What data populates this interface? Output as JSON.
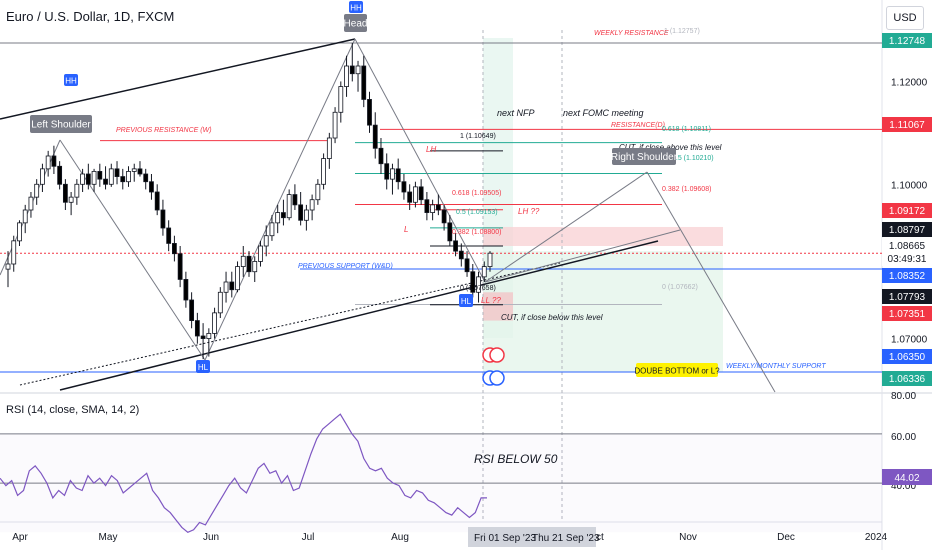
{
  "header": {
    "title": "Euro / U.S. Dollar, 1D, FXCM",
    "currency_button": "USD"
  },
  "colors": {
    "up": "#ffffff",
    "down": "#000000",
    "red": "#f23645",
    "blue": "#2962ff",
    "green": "#22ab94",
    "gray": "#787b86",
    "rsi": "#7e57c2"
  },
  "chart_data": {
    "type": "candlestick",
    "price_axis": {
      "ylim": [
        1.06,
        1.13
      ],
      "ticks": [
        1.12,
        1.1,
        1.07
      ],
      "tick_labels": [
        "1.12000",
        "1.10000",
        "1.07000"
      ]
    },
    "time_axis": {
      "labels": [
        "Apr",
        "May",
        "Jun",
        "Jul",
        "Aug",
        "Oct",
        "Nov",
        "Dec",
        "2024"
      ],
      "highlight_labels": [
        "Fri 01 Sep '23",
        "Thu 21 Sep '23"
      ]
    },
    "price_badges": [
      {
        "value": "1.12748",
        "color": "#22ab94"
      },
      {
        "value": "1.11067",
        "color": "#f23645"
      },
      {
        "value": "1.09172",
        "color": "#f23645"
      },
      {
        "value": "1.08797",
        "color": "#131722"
      },
      {
        "value": "1.08665",
        "color": "#ffffff"
      },
      {
        "value": "03:49:31",
        "color": "#ffffff"
      },
      {
        "value": "1.08352",
        "color": "#2962ff"
      },
      {
        "value": "1.07793",
        "color": "#131722"
      },
      {
        "value": "1.07351",
        "color": "#f23645"
      },
      {
        "value": "1.06350",
        "color": "#2962ff"
      },
      {
        "value": "1.06336",
        "color": "#22ab94"
      }
    ],
    "candles_ohlc": [
      [
        1.0835,
        1.087,
        1.08,
        1.0845
      ],
      [
        1.0845,
        1.09,
        1.083,
        1.089
      ],
      [
        1.089,
        1.093,
        1.088,
        1.0925
      ],
      [
        1.0925,
        1.096,
        1.0905,
        1.095
      ],
      [
        1.095,
        1.0985,
        1.0935,
        1.0975
      ],
      [
        1.0975,
        1.101,
        1.096,
        1.1
      ],
      [
        1.1,
        1.104,
        1.0985,
        1.103
      ],
      [
        1.103,
        1.1065,
        1.1015,
        1.1055
      ],
      [
        1.1055,
        1.1075,
        1.102,
        1.1035
      ],
      [
        1.1035,
        1.1045,
        1.099,
        1.1
      ],
      [
        1.1,
        1.101,
        1.095,
        1.0965
      ],
      [
        1.0965,
        1.0985,
        1.094,
        1.0975
      ],
      [
        1.0975,
        1.101,
        1.096,
        1.1
      ],
      [
        1.1,
        1.103,
        1.0985,
        1.102
      ],
      [
        1.102,
        1.104,
        1.099,
        1.1
      ],
      [
        1.1,
        1.103,
        1.0985,
        1.1025
      ],
      [
        1.1025,
        1.104,
        1.0995,
        1.101
      ],
      [
        1.101,
        1.1035,
        1.099,
        1.1
      ],
      [
        1.1,
        1.104,
        1.0995,
        1.103
      ],
      [
        1.103,
        1.1045,
        1.1,
        1.1015
      ],
      [
        1.1015,
        1.103,
        1.099,
        1.1005
      ],
      [
        1.1005,
        1.1035,
        1.0995,
        1.1025
      ],
      [
        1.1025,
        1.104,
        1.1005,
        1.103
      ],
      [
        1.103,
        1.1045,
        1.1015,
        1.102
      ],
      [
        1.102,
        1.103,
        1.099,
        1.1005
      ],
      [
        1.1005,
        1.102,
        1.097,
        1.0985
      ],
      [
        1.0985,
        1.1,
        1.094,
        1.095
      ],
      [
        1.095,
        1.097,
        1.09,
        1.0915
      ],
      [
        1.0915,
        1.093,
        1.087,
        1.0885
      ],
      [
        1.0885,
        1.09,
        1.085,
        1.0865
      ],
      [
        1.0865,
        1.088,
        1.08,
        1.0815
      ],
      [
        1.0815,
        1.083,
        1.076,
        1.0775
      ],
      [
        1.0775,
        1.079,
        1.072,
        1.0735
      ],
      [
        1.0735,
        1.075,
        1.069,
        1.0705
      ],
      [
        1.0705,
        1.073,
        1.066,
        1.07
      ],
      [
        1.07,
        1.072,
        1.0665,
        1.071
      ],
      [
        1.071,
        1.076,
        1.07,
        1.075
      ],
      [
        1.075,
        1.08,
        1.074,
        1.079
      ],
      [
        1.079,
        1.083,
        1.077,
        1.081
      ],
      [
        1.081,
        1.083,
        1.078,
        1.0795
      ],
      [
        1.0795,
        1.085,
        1.079,
        1.084
      ],
      [
        1.084,
        1.088,
        1.082,
        1.086
      ],
      [
        1.086,
        1.087,
        1.082,
        1.083
      ],
      [
        1.083,
        1.086,
        1.081,
        1.085
      ],
      [
        1.085,
        1.089,
        1.084,
        1.088
      ],
      [
        1.088,
        1.092,
        1.086,
        1.09
      ],
      [
        1.09,
        1.094,
        1.089,
        1.0925
      ],
      [
        1.0925,
        1.096,
        1.0905,
        1.0945
      ],
      [
        1.0945,
        1.097,
        1.092,
        1.0935
      ],
      [
        1.0935,
        1.099,
        1.093,
        1.098
      ],
      [
        1.098,
        1.1,
        1.095,
        1.096
      ],
      [
        1.096,
        1.0985,
        1.092,
        1.093
      ],
      [
        1.093,
        1.096,
        1.091,
        1.095
      ],
      [
        1.095,
        1.098,
        1.093,
        1.097
      ],
      [
        1.097,
        1.101,
        1.096,
        1.1
      ],
      [
        1.1,
        1.106,
        1.099,
        1.105
      ],
      [
        1.105,
        1.11,
        1.103,
        1.109
      ],
      [
        1.109,
        1.115,
        1.108,
        1.114
      ],
      [
        1.114,
        1.12,
        1.112,
        1.119
      ],
      [
        1.119,
        1.125,
        1.117,
        1.123
      ],
      [
        1.123,
        1.1275,
        1.12,
        1.1215
      ],
      [
        1.1215,
        1.124,
        1.118,
        1.123
      ],
      [
        1.123,
        1.125,
        1.115,
        1.1165
      ],
      [
        1.1165,
        1.118,
        1.11,
        1.1115
      ],
      [
        1.1115,
        1.114,
        1.105,
        1.107
      ],
      [
        1.107,
        1.109,
        1.102,
        1.104
      ],
      [
        1.104,
        1.106,
        1.099,
        1.101
      ],
      [
        1.101,
        1.104,
        1.098,
        1.103
      ],
      [
        1.103,
        1.105,
        1.099,
        1.1005
      ],
      [
        1.1005,
        1.102,
        1.097,
        1.0985
      ],
      [
        1.0985,
        1.1,
        1.095,
        1.0965
      ],
      [
        1.0965,
        1.1005,
        1.0955,
        1.0995
      ],
      [
        1.0995,
        1.101,
        1.096,
        1.097
      ],
      [
        1.097,
        1.0985,
        1.093,
        1.0945
      ],
      [
        1.0945,
        1.097,
        1.093,
        1.096
      ],
      [
        1.096,
        1.098,
        1.094,
        1.095
      ],
      [
        1.095,
        1.096,
        1.091,
        1.0925
      ],
      [
        1.0925,
        1.094,
        1.088,
        1.089
      ],
      [
        1.089,
        1.0905,
        1.086,
        1.087
      ],
      [
        1.087,
        1.0885,
        1.084,
        1.0855
      ],
      [
        1.0855,
        1.087,
        1.082,
        1.083
      ],
      [
        1.083,
        1.0845,
        1.078,
        1.079
      ],
      [
        1.079,
        1.083,
        1.077,
        1.082
      ],
      [
        1.082,
        1.085,
        1.081,
        1.084
      ],
      [
        1.084,
        1.087,
        1.083,
        1.0866
      ]
    ],
    "levels": [
      {
        "label": "WEEKLY RESISTANCE",
        "value": 1.12748,
        "color": "#f23645"
      },
      {
        "label": "PREVIOUS RESISTANCE (W)",
        "value": 1.1085,
        "color": "#f23645"
      },
      {
        "label": "RESISTANCE(D)",
        "value": 1.11067,
        "color": "#f23645"
      },
      {
        "label": "PREVIOUS SUPPORT (W&D)",
        "value": 1.08352,
        "color": "#2962ff"
      },
      {
        "label": "WEEKLY/MONTHLY SUPPORT",
        "value": 1.0635,
        "color": "#2962ff"
      }
    ],
    "fib_levels": [
      {
        "label": "1 (1.12757)",
        "value": 1.12757
      },
      {
        "label": "0.618 (1.10811)",
        "value": 1.10811
      },
      {
        "label": "0.5 (1.10210)",
        "value": 1.1021
      },
      {
        "label": "0.382 (1.09608)",
        "value": 1.09608
      },
      {
        "label": "0 (1.07662)",
        "value": 1.07662
      }
    ],
    "fib_levels_small": [
      {
        "label": "1 (1.10649)",
        "value": 1.10649
      },
      {
        "label": "0.618 (1.09505)",
        "value": 1.09505
      },
      {
        "label": "0.5 (1.09153)",
        "value": 1.09153
      },
      {
        "label": "0.382 (1.08800)",
        "value": 1.088
      },
      {
        "label": "0 (1.07658)",
        "value": 1.07658
      }
    ],
    "annotations": [
      "Head",
      "HH",
      "HH",
      "Left Shoulder",
      "Right Shoulder",
      "LH",
      "LH ??",
      "L",
      "LL ??",
      "HL",
      "HL",
      "next NFP",
      "next FOMC meeting",
      "CUT, if close above this level",
      "CUT, if close below this level",
      "DOUBE BOTTOM or L?"
    ],
    "rsi": {
      "label": "RSI (14, close, SMA, 14, 2)",
      "ticks": [
        80,
        60,
        40
      ],
      "tick_labels": [
        "80.00",
        "60.00",
        "40.00"
      ],
      "badge": "44.02",
      "note": "RSI BELOW 50",
      "values": [
        52,
        49,
        51,
        45,
        47,
        55,
        57,
        54,
        50,
        44,
        47,
        45,
        51,
        48,
        47,
        53,
        50,
        52,
        49,
        53,
        51,
        46,
        48,
        50,
        52,
        54,
        47,
        44,
        40,
        38,
        35,
        32,
        30,
        31,
        34,
        33,
        37,
        41,
        45,
        49,
        52,
        48,
        46,
        51,
        56,
        58,
        54,
        55,
        50,
        53,
        47,
        48,
        55,
        62,
        68,
        72,
        74,
        76,
        78,
        74,
        70,
        67,
        60,
        56,
        55,
        56,
        52,
        50,
        49,
        45,
        44,
        47,
        46,
        43,
        42,
        40,
        38,
        37,
        40,
        38,
        36,
        38,
        44,
        44
      ]
    }
  }
}
